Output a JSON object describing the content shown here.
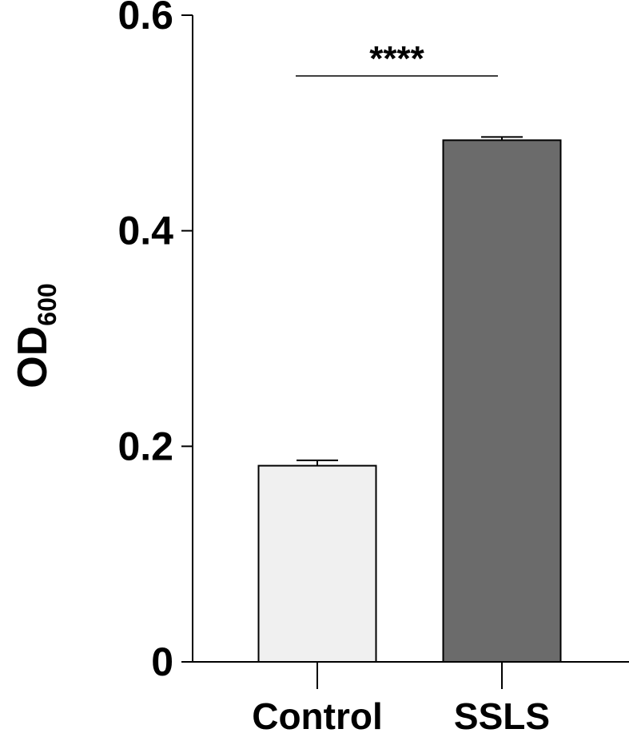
{
  "chart_data": {
    "type": "bar",
    "y_label": {
      "main": "OD",
      "subscript": "600"
    },
    "categories": [
      "Control",
      "SSLS"
    ],
    "values": [
      0.182,
      0.484
    ],
    "errors": [
      0.005,
      0.003
    ],
    "colors": [
      "#f0f0f0",
      "#6b6b6b"
    ],
    "ylim": [
      0,
      0.6
    ],
    "yticks": [
      0,
      0.2,
      0.4,
      0.6
    ],
    "annotations": [
      {
        "text": "****",
        "from": 0,
        "to": 1
      }
    ]
  }
}
